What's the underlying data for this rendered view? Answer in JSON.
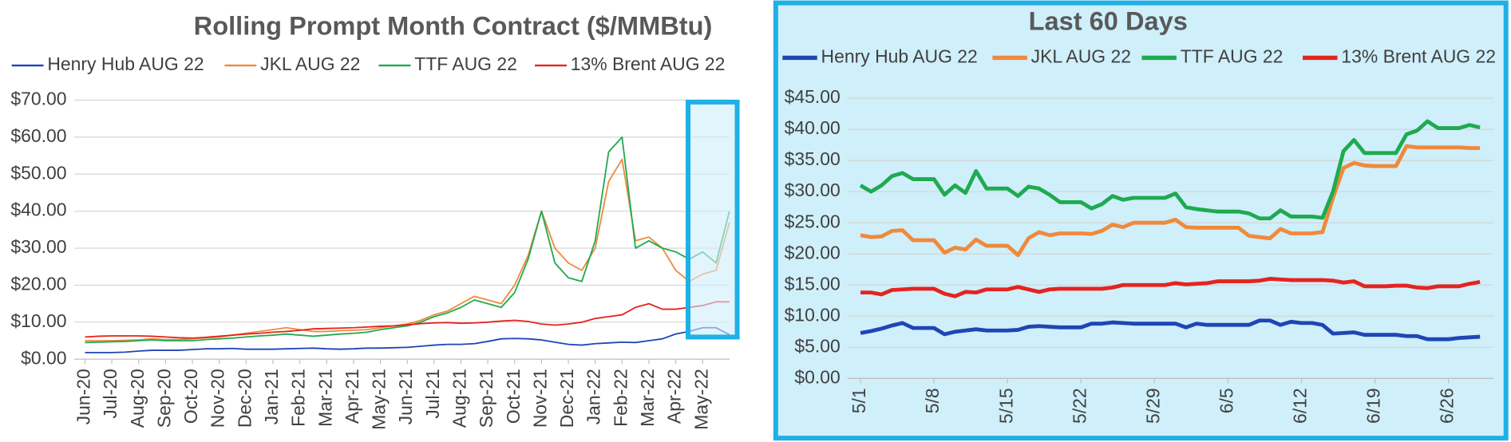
{
  "chart_data": [
    {
      "type": "line",
      "title": "Rolling Prompt Month Contract ($/MMBtu)",
      "categories": [
        "Jun-20",
        null,
        "Jul-20",
        null,
        "Aug-20",
        null,
        "Sep-20",
        null,
        "Oct-20",
        null,
        "Nov-20",
        null,
        "Dec-20",
        null,
        "Jan-21",
        null,
        "Feb-21",
        null,
        "Mar-21",
        null,
        "Apr-21",
        null,
        "May-21",
        null,
        "Jun-21",
        null,
        "Jul-21",
        null,
        "Aug-21",
        null,
        "Sep-21",
        null,
        "Oct-21",
        null,
        "Nov-21",
        null,
        "Dec-21",
        null,
        "Jan-22",
        null,
        "Feb-22",
        null,
        "Mar-22",
        null,
        "Apr-22",
        null,
        "May-22",
        null,
        null
      ],
      "series": [
        {
          "name": "Henry Hub AUG 22",
          "color": "#1f45b5",
          "values": [
            1.8,
            1.8,
            1.8,
            1.9,
            2.2,
            2.4,
            2.4,
            2.4,
            2.6,
            2.8,
            2.8,
            2.9,
            2.7,
            2.7,
            2.7,
            2.8,
            2.9,
            3,
            2.8,
            2.7,
            2.8,
            3,
            3,
            3.1,
            3.2,
            3.5,
            3.8,
            4,
            4,
            4.2,
            4.8,
            5.5,
            5.6,
            5.5,
            5.2,
            4.6,
            4,
            3.8,
            4.2,
            4.4,
            4.6,
            4.5,
            5,
            5.5,
            6.8,
            7.5,
            8.5,
            8.5,
            6.6
          ]
        },
        {
          "name": "JKL AUG 22",
          "color": "#ef8a3c",
          "values": [
            5,
            5,
            5,
            5.1,
            5.2,
            5.5,
            5.3,
            5.3,
            5.5,
            5.8,
            6,
            6.5,
            7,
            7.5,
            8,
            8.5,
            8,
            7.5,
            7.5,
            7.7,
            7.8,
            8,
            8.5,
            9,
            9.5,
            10.5,
            12,
            13,
            15,
            17,
            16,
            15,
            20,
            28,
            40,
            30,
            26,
            24,
            30,
            48,
            54,
            32,
            33,
            30,
            24,
            21,
            23,
            24,
            37
          ]
        },
        {
          "name": "TTF AUG 22",
          "color": "#1faa4f",
          "values": [
            4.5,
            4.6,
            4.7,
            4.8,
            5,
            5.2,
            5,
            5,
            5,
            5.3,
            5.5,
            5.7,
            6,
            6.3,
            6.5,
            6.8,
            6.5,
            6.2,
            6.5,
            6.8,
            7,
            7.3,
            8,
            8.5,
            9,
            10,
            11.5,
            12.5,
            14,
            16,
            15,
            14,
            18,
            27,
            40,
            26,
            22,
            21,
            32,
            56,
            60,
            30,
            32,
            30,
            29,
            27,
            29,
            26,
            40
          ]
        },
        {
          "name": "13% Brent AUG 22",
          "color": "#e4241f",
          "values": [
            6,
            6.2,
            6.3,
            6.3,
            6.3,
            6.2,
            6,
            5.8,
            5.7,
            5.9,
            6.2,
            6.5,
            6.8,
            7,
            7.3,
            7.5,
            7.8,
            8.2,
            8.3,
            8.4,
            8.5,
            8.7,
            8.9,
            9,
            9.3,
            9.6,
            9.8,
            9.9,
            9.7,
            9.8,
            10,
            10.3,
            10.5,
            10.2,
            9.5,
            9.2,
            9.5,
            10,
            11,
            11.5,
            12,
            14,
            15,
            13.5,
            13.5,
            14,
            14.5,
            15.5,
            15.5
          ]
        }
      ],
      "ylim": [
        0,
        70
      ],
      "yticks": [
        {
          "value": 0,
          "label": "$0.00"
        },
        {
          "value": 10,
          "label": "$10.00"
        },
        {
          "value": 20,
          "label": "$20.00"
        },
        {
          "value": 30,
          "label": "$30.00"
        },
        {
          "value": 40,
          "label": "$40.00"
        },
        {
          "value": 50,
          "label": "$50.00"
        },
        {
          "value": 60,
          "label": "$60.00"
        },
        {
          "value": 70,
          "label": "$70.00"
        }
      ],
      "grid": true
    },
    {
      "type": "line",
      "title": "Last 60 Days",
      "categories": [
        "5/1",
        null,
        null,
        null,
        null,
        null,
        null,
        "5/8",
        null,
        null,
        null,
        null,
        null,
        null,
        "5/15",
        null,
        null,
        null,
        null,
        null,
        null,
        "5/22",
        null,
        null,
        null,
        null,
        null,
        null,
        "5/29",
        null,
        null,
        null,
        null,
        null,
        null,
        "6/5",
        null,
        null,
        null,
        null,
        null,
        null,
        "6/12",
        null,
        null,
        null,
        null,
        null,
        null,
        "6/19",
        null,
        null,
        null,
        null,
        null,
        null,
        "6/26",
        null,
        null,
        null
      ],
      "series": [
        {
          "name": "Henry Hub AUG 22",
          "color": "#1f45b5",
          "values": [
            7.3,
            7.6,
            8,
            8.5,
            8.9,
            8.1,
            8.1,
            8.1,
            7.1,
            7.5,
            7.7,
            7.9,
            7.7,
            7.7,
            7.7,
            7.8,
            8.3,
            8.4,
            8.3,
            8.2,
            8.2,
            8.2,
            8.8,
            8.8,
            9,
            8.9,
            8.8,
            8.8,
            8.8,
            8.8,
            8.8,
            8.2,
            8.8,
            8.6,
            8.6,
            8.6,
            8.6,
            8.6,
            9.3,
            9.3,
            8.6,
            9.1,
            8.9,
            8.9,
            8.6,
            7.2,
            7.3,
            7.4,
            7,
            7,
            7,
            7,
            6.8,
            6.8,
            6.3,
            6.3,
            6.3,
            6.5,
            6.6,
            6.7
          ]
        },
        {
          "name": "JKL AUG 22",
          "color": "#ef8a3c",
          "values": [
            23,
            22.7,
            22.8,
            23.7,
            23.8,
            22.2,
            22.2,
            22.2,
            20.2,
            21,
            20.7,
            22.3,
            21.3,
            21.3,
            21.3,
            19.8,
            22.5,
            23.5,
            23,
            23.3,
            23.3,
            23.3,
            23.2,
            23.7,
            24.7,
            24.3,
            25,
            25,
            25,
            25,
            25.5,
            24.3,
            24.2,
            24.2,
            24.2,
            24.2,
            24.2,
            22.9,
            22.7,
            22.5,
            24,
            23.3,
            23.3,
            23.3,
            23.5,
            29,
            33.8,
            34.6,
            34.2,
            34.1,
            34.1,
            34.1,
            37.3,
            37.1,
            37.1,
            37.1,
            37.1,
            37.1,
            37,
            37
          ]
        },
        {
          "name": "TTF AUG 22",
          "color": "#1faa4f",
          "values": [
            31,
            30,
            31,
            32.5,
            33,
            32,
            32,
            32,
            29.5,
            31,
            29.8,
            33.3,
            30.5,
            30.5,
            30.5,
            29.3,
            30.8,
            30.5,
            29.5,
            28.3,
            28.3,
            28.3,
            27.3,
            28,
            29.3,
            28.7,
            29,
            29,
            29,
            29,
            29.7,
            27.5,
            27.2,
            27,
            26.8,
            26.8,
            26.8,
            26.5,
            25.7,
            25.7,
            27,
            26,
            26,
            26,
            25.8,
            30,
            36.5,
            38.3,
            36.2,
            36.2,
            36.2,
            36.2,
            39.2,
            39.8,
            41.3,
            40.2,
            40.2,
            40.2,
            40.7,
            40.3
          ]
        },
        {
          "name": "13% Brent AUG 22",
          "color": "#e4241f",
          "values": [
            13.8,
            13.8,
            13.5,
            14.2,
            14.3,
            14.4,
            14.4,
            14.4,
            13.6,
            13.2,
            13.9,
            13.8,
            14.3,
            14.3,
            14.3,
            14.7,
            14.3,
            13.9,
            14.3,
            14.4,
            14.4,
            14.4,
            14.4,
            14.4,
            14.6,
            15,
            15,
            15,
            15,
            15,
            15.3,
            15.1,
            15.2,
            15.3,
            15.6,
            15.6,
            15.6,
            15.6,
            15.7,
            16,
            15.9,
            15.8,
            15.8,
            15.8,
            15.8,
            15.7,
            15.4,
            15.6,
            14.8,
            14.8,
            14.8,
            14.9,
            14.9,
            14.6,
            14.5,
            14.8,
            14.8,
            14.8,
            15.2,
            15.5
          ]
        }
      ],
      "ylim": [
        0,
        45
      ],
      "yticks": [
        {
          "value": 0,
          "label": "$0.00"
        },
        {
          "value": 5,
          "label": "$5.00"
        },
        {
          "value": 10,
          "label": "$10.00"
        },
        {
          "value": 15,
          "label": "$15.00"
        },
        {
          "value": 20,
          "label": "$20.00"
        },
        {
          "value": 25,
          "label": "$25.00"
        },
        {
          "value": 30,
          "label": "$30.00"
        },
        {
          "value": 35,
          "label": "$35.00"
        },
        {
          "value": 40,
          "label": "$40.00"
        },
        {
          "value": 45,
          "label": "$45.00"
        }
      ],
      "grid": true
    }
  ]
}
